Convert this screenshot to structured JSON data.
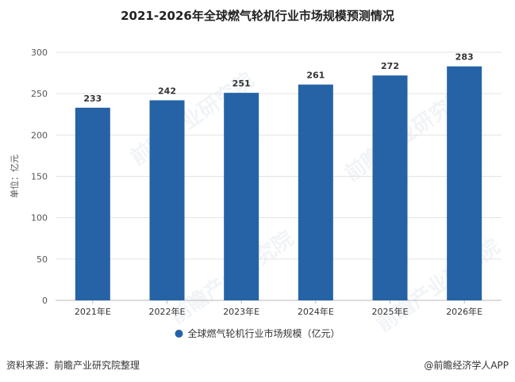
{
  "footer": {
    "source": "资料来源：前瞻产业研究院整理",
    "brand": "@前瞻经济学人APP"
  },
  "watermark_text": "前瞻产业研究院",
  "chart_data": {
    "type": "bar",
    "title": "2021-2026年全球燃气轮机行业市场规模预测情况",
    "ylabel": "单位：亿元",
    "categories": [
      "2021年E",
      "2022年E",
      "2023年E",
      "2024年E",
      "2025年E",
      "2026年E"
    ],
    "series": [
      {
        "name": "全球燃气轮机行业市场规模（亿元）",
        "values": [
          233,
          242,
          251,
          261,
          272,
          283
        ],
        "color": "#2563A6"
      }
    ],
    "ylim": [
      0,
      300
    ],
    "yticks": [
      0,
      50,
      100,
      150,
      200,
      250,
      300
    ],
    "grid": true,
    "legend_position": "bottom"
  }
}
